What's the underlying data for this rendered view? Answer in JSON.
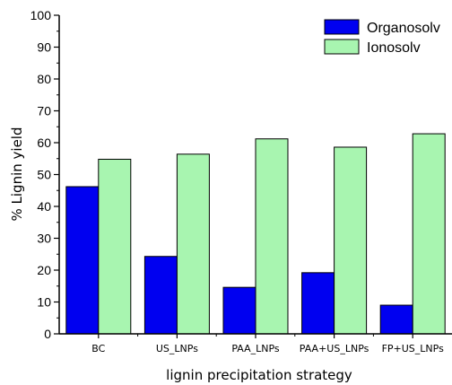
{
  "chart_data": {
    "type": "bar",
    "categories": [
      "BC",
      "US_LNPs",
      "PAA_LNPs",
      "PAA+US_LNPs",
      "FP+US_LNPs"
    ],
    "series": [
      {
        "name": "Organosolv",
        "values": [
          46.2,
          24.3,
          14.6,
          19.2,
          9.0
        ],
        "color": "#0000f0"
      },
      {
        "name": "Ionosolv",
        "values": [
          54.8,
          56.4,
          61.2,
          58.6,
          62.8
        ],
        "color": "#a8f5b0"
      }
    ],
    "xlabel": "lignin precipitation strategy",
    "ylabel": "% Lignin yield",
    "ylim": [
      0,
      100
    ],
    "yticks": [
      0,
      10,
      20,
      30,
      40,
      50,
      60,
      70,
      80,
      90,
      100
    ],
    "grid": false,
    "legend": "top-right"
  }
}
